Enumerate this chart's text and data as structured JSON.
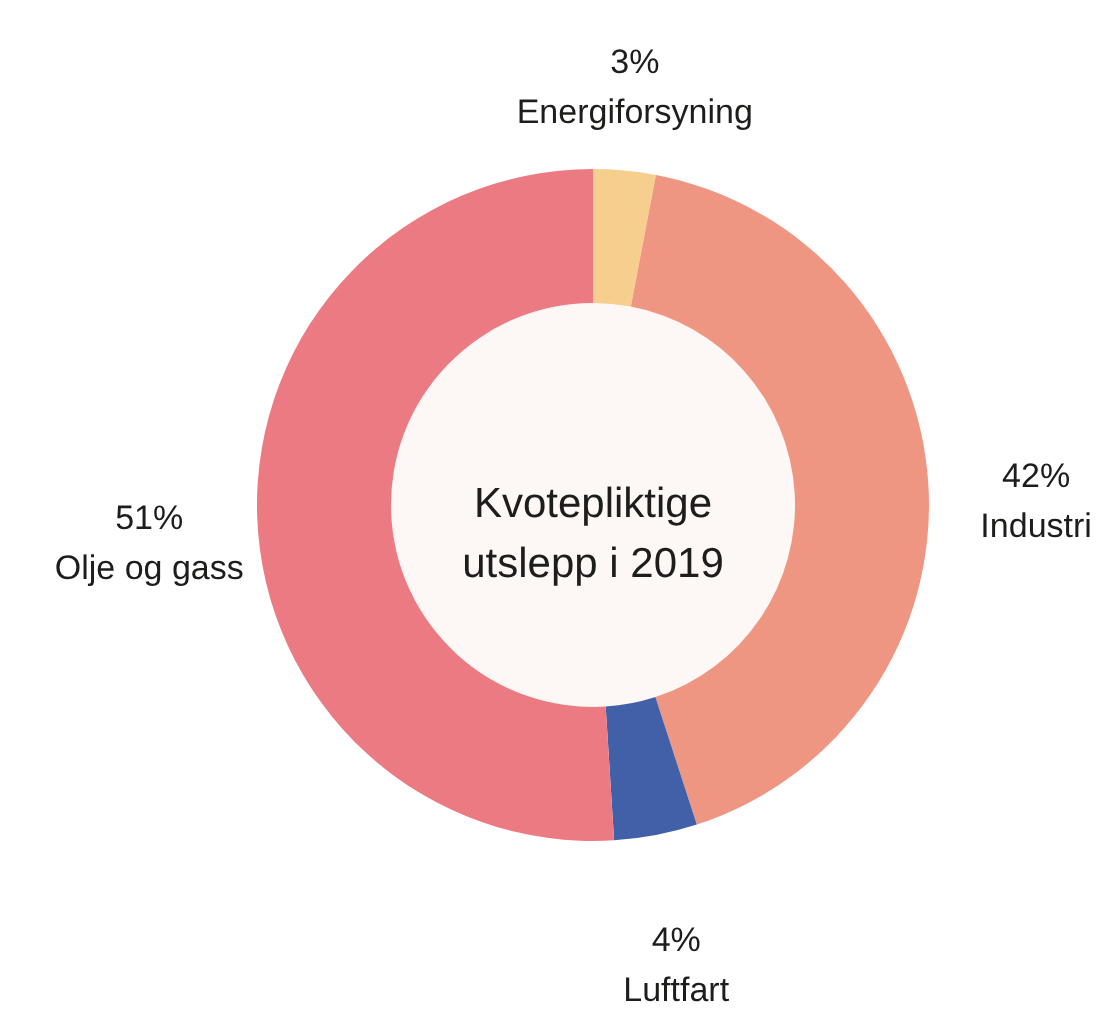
{
  "chart_data": {
    "type": "donut",
    "title": "Kvotepliktige utslepp i 2019",
    "categories": [
      "Energiforsyning",
      "Industri",
      "Luftfart",
      "Olje og gass"
    ],
    "values": [
      3,
      42,
      4,
      51
    ],
    "value_labels": [
      "3%",
      "42%",
      "4%",
      "51%"
    ],
    "colors": [
      "#f6cf8f",
      "#ef9683",
      "#4260a8",
      "#ec7a82"
    ]
  }
}
